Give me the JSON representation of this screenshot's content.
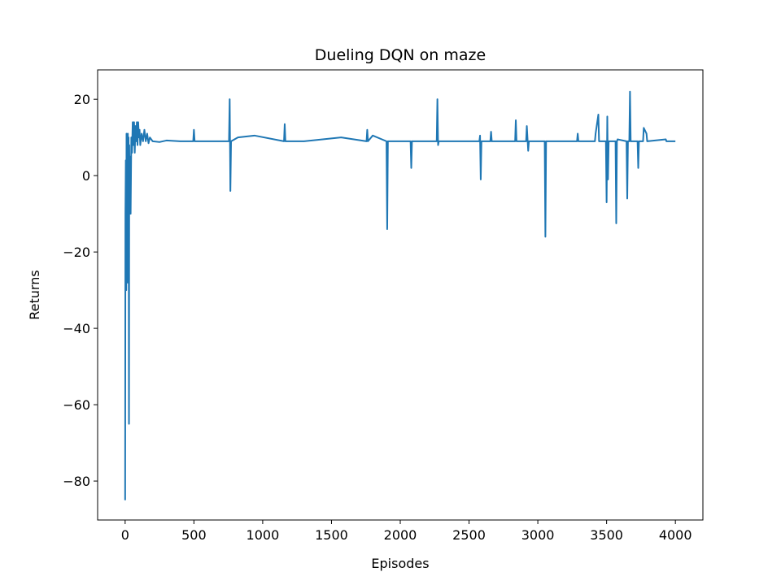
{
  "chart_data": {
    "type": "line",
    "title": "Dueling DQN on maze",
    "xlabel": "Episodes",
    "ylabel": "Returns",
    "x": [
      0,
      2,
      5,
      8,
      10,
      12,
      15,
      18,
      20,
      22,
      25,
      28,
      30,
      33,
      36,
      40,
      45,
      50,
      55,
      60,
      65,
      70,
      75,
      80,
      85,
      90,
      95,
      100,
      105,
      110,
      120,
      130,
      140,
      150,
      160,
      170,
      180,
      200,
      250,
      300,
      400,
      495,
      500,
      505,
      600,
      755,
      760,
      765,
      770,
      820,
      940,
      1155,
      1160,
      1165,
      1300,
      1570,
      1755,
      1760,
      1765,
      1800,
      1900,
      1905,
      1910,
      2000,
      2075,
      2080,
      2085,
      2265,
      2270,
      2275,
      2280,
      2400,
      2575,
      2580,
      2585,
      2590,
      2655,
      2660,
      2665,
      2835,
      2840,
      2845,
      2915,
      2920,
      2930,
      2935,
      3050,
      3055,
      3060,
      3285,
      3290,
      3295,
      3415,
      3420,
      3440,
      3445,
      3495,
      3500,
      3505,
      3510,
      3515,
      3565,
      3570,
      3575,
      3580,
      3645,
      3650,
      3655,
      3665,
      3670,
      3675,
      3725,
      3730,
      3735,
      3765,
      3770,
      3790,
      3795,
      3930,
      3935,
      4000
    ],
    "series": [
      {
        "name": "Returns",
        "color": "#1f77b4",
        "values": [
          -85,
          -10,
          4,
          -30,
          11,
          -20,
          5,
          -28,
          11,
          -5,
          10,
          -65,
          8,
          -10,
          5,
          -10,
          10,
          6,
          14,
          8,
          14,
          6,
          13,
          9,
          14,
          8,
          14,
          10,
          12,
          8,
          11,
          9,
          12,
          9,
          11,
          8.5,
          10,
          9,
          8.8,
          9.2,
          9,
          9,
          12,
          9,
          9,
          9,
          20,
          -4,
          9,
          10,
          10.5,
          9,
          13.5,
          9,
          9,
          10,
          9,
          12,
          9,
          10.5,
          9,
          -14,
          9,
          9,
          9,
          2,
          9,
          9,
          20,
          8,
          9,
          9,
          9,
          10.5,
          -1,
          9,
          9,
          11.5,
          9,
          9,
          14.5,
          9,
          9,
          13,
          6.5,
          9,
          9,
          -16,
          9,
          9,
          11,
          9,
          9,
          11,
          16,
          9,
          9,
          -7,
          15.5,
          -1,
          9,
          9,
          -12.5,
          9,
          9.5,
          9,
          -6,
          9,
          9,
          22,
          9,
          9,
          2,
          9,
          9,
          12.5,
          11,
          9,
          9.5,
          9,
          9
        ]
      }
    ],
    "xlim": [
      -200,
      4200
    ],
    "ylim": [
      -90.2,
      27.7
    ],
    "xticks": [
      0,
      500,
      1000,
      1500,
      2000,
      2500,
      3000,
      3500,
      4000
    ],
    "yticks": [
      {
        "value": -80,
        "label": "−80"
      },
      {
        "value": -60,
        "label": "−60"
      },
      {
        "value": -40,
        "label": "−40"
      },
      {
        "value": -20,
        "label": "−20"
      },
      0,
      20
    ]
  }
}
